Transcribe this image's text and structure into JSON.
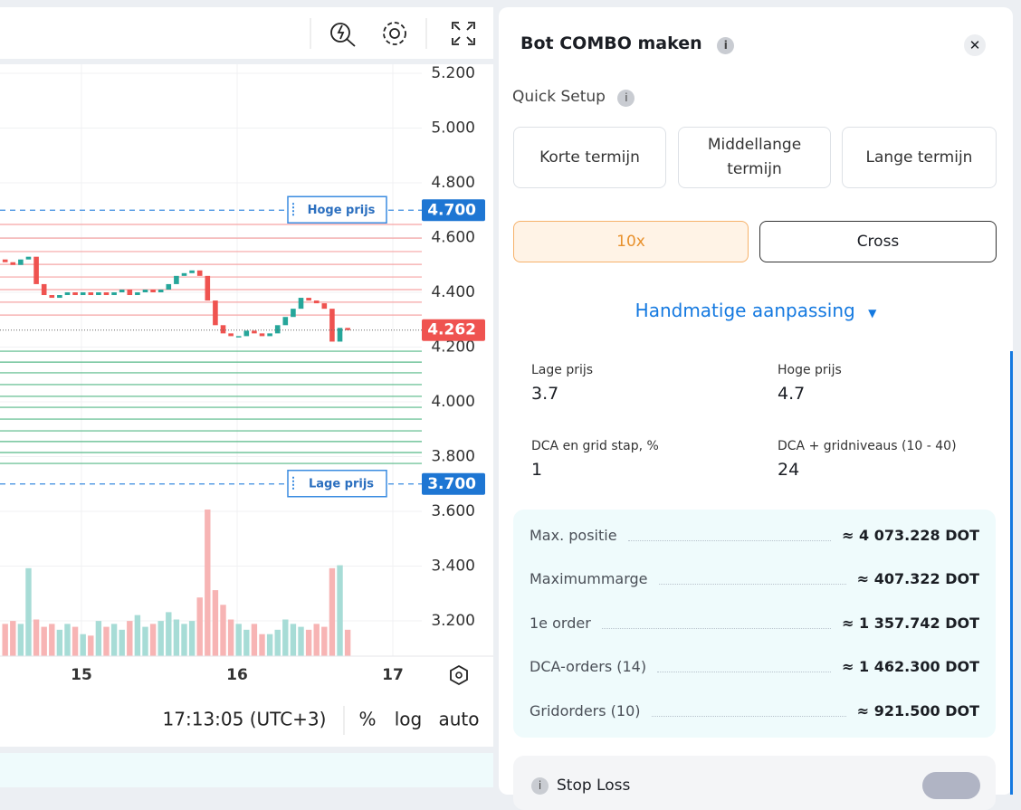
{
  "chart_data": {
    "type": "candlestick",
    "x": [
      14.51,
      14.56,
      14.61,
      14.66,
      14.71,
      14.76,
      14.81,
      14.86,
      14.91,
      14.96,
      15.01,
      15.06,
      15.11,
      15.16,
      15.21,
      15.26,
      15.31,
      15.36,
      15.41,
      15.46,
      15.51,
      15.56,
      15.61,
      15.66,
      15.71,
      15.76,
      15.81,
      15.86,
      15.91,
      15.96,
      16.01,
      16.06,
      16.11,
      16.16,
      16.21,
      16.26,
      16.31,
      16.36,
      16.41,
      16.46,
      16.51,
      16.56,
      16.61,
      16.66,
      16.71
    ],
    "open": [
      4.52,
      4.51,
      4.5,
      4.52,
      4.53,
      4.43,
      4.39,
      4.38,
      4.39,
      4.4,
      4.39,
      4.4,
      4.39,
      4.4,
      4.39,
      4.4,
      4.41,
      4.39,
      4.4,
      4.41,
      4.4,
      4.41,
      4.43,
      4.46,
      4.47,
      4.48,
      4.46,
      4.37,
      4.28,
      4.25,
      4.24,
      4.24,
      4.26,
      4.25,
      4.24,
      4.25,
      4.28,
      4.31,
      4.34,
      4.38,
      4.37,
      4.36,
      4.34,
      4.22,
      4.27
    ],
    "close": [
      4.51,
      4.5,
      4.52,
      4.53,
      4.43,
      4.39,
      4.38,
      4.39,
      4.4,
      4.39,
      4.4,
      4.39,
      4.4,
      4.39,
      4.4,
      4.41,
      4.39,
      4.4,
      4.41,
      4.4,
      4.41,
      4.43,
      4.46,
      4.47,
      4.48,
      4.46,
      4.37,
      4.28,
      4.25,
      4.24,
      4.24,
      4.26,
      4.25,
      4.24,
      4.25,
      4.28,
      4.31,
      4.34,
      4.38,
      4.37,
      4.36,
      4.34,
      4.22,
      4.27,
      4.262
    ],
    "volume": [
      22,
      24,
      22,
      60,
      25,
      20,
      22,
      18,
      22,
      20,
      15,
      14,
      24,
      20,
      22,
      18,
      24,
      28,
      20,
      22,
      24,
      30,
      25,
      22,
      24,
      40,
      100,
      45,
      35,
      25,
      22,
      18,
      22,
      15,
      15,
      18,
      25,
      22,
      20,
      18,
      22,
      20,
      60,
      62,
      18
    ],
    "up_color": "#26a69a",
    "down_color": "#ef5350",
    "xlim": [
      14.477,
      17.186
    ],
    "xticks": [
      15,
      16,
      17
    ],
    "ylim": [
      3.2,
      5.2
    ],
    "yticks": [
      {
        "value": 5.2,
        "label": "5.200"
      },
      {
        "value": 5.0,
        "label": "5.000"
      },
      {
        "value": 4.8,
        "label": "4.800"
      },
      {
        "value": 4.6,
        "label": "4.600"
      },
      {
        "value": 4.4,
        "label": "4.400"
      },
      {
        "value": 4.2,
        "label": "4.200"
      },
      {
        "value": 4.0,
        "label": "4.000"
      },
      {
        "value": 3.8,
        "label": "3.800"
      },
      {
        "value": 3.6,
        "label": "3.600"
      },
      {
        "value": 3.4,
        "label": "3.400"
      },
      {
        "value": 3.2,
        "label": "3.200"
      }
    ],
    "grid": true,
    "grid_levels": {
      "sell": [
        4.648,
        4.598,
        4.549,
        4.502,
        4.456,
        4.41,
        4.364,
        4.317
      ],
      "buy": [
        4.185,
        4.145,
        4.106,
        4.063,
        4.02,
        3.98,
        3.937,
        3.894,
        3.855,
        3.815,
        3.775
      ]
    },
    "price_lines": [
      {
        "name": "Hoge prijs",
        "value": 4.7,
        "label": "4.700"
      },
      {
        "name": "Lage prijs",
        "value": 3.7,
        "label": "3.700"
      }
    ],
    "current_price": {
      "value": 4.262,
      "label": "4.262"
    }
  },
  "chart_toolbar": {
    "time": "17:13:05 (UTC+3)",
    "percent": "%",
    "log": "log",
    "auto": "auto"
  },
  "panel": {
    "title": "Bot COMBO maken",
    "quick_setup": "Quick Setup",
    "presets": [
      "Korte termijn",
      "Middellange termijn",
      "Lange termijn"
    ],
    "leverage": "10x",
    "margin_mode": "Cross",
    "manual": "Handmatige aanpassing",
    "fields": [
      {
        "label": "Lage prijs",
        "value": "3.7"
      },
      {
        "label": "Hoge prijs",
        "value": "4.7"
      },
      {
        "label": "DCA en grid stap, %",
        "value": "1"
      },
      {
        "label": "DCA + gridniveaus (10 - 40)",
        "value": "24"
      }
    ],
    "summary": [
      {
        "label": "Max. positie",
        "value": "≈ 4 073.228 DOT"
      },
      {
        "label": "Maximummarge",
        "value": "≈ 407.322 DOT"
      },
      {
        "label": "1e order",
        "value": "≈ 1 357.742 DOT"
      },
      {
        "label": "DCA-orders (14)",
        "value": "≈ 1 462.300 DOT"
      },
      {
        "label": "Gridorders (10)",
        "value": "≈ 921.500 DOT"
      }
    ],
    "stop_loss": "Stop Loss"
  }
}
